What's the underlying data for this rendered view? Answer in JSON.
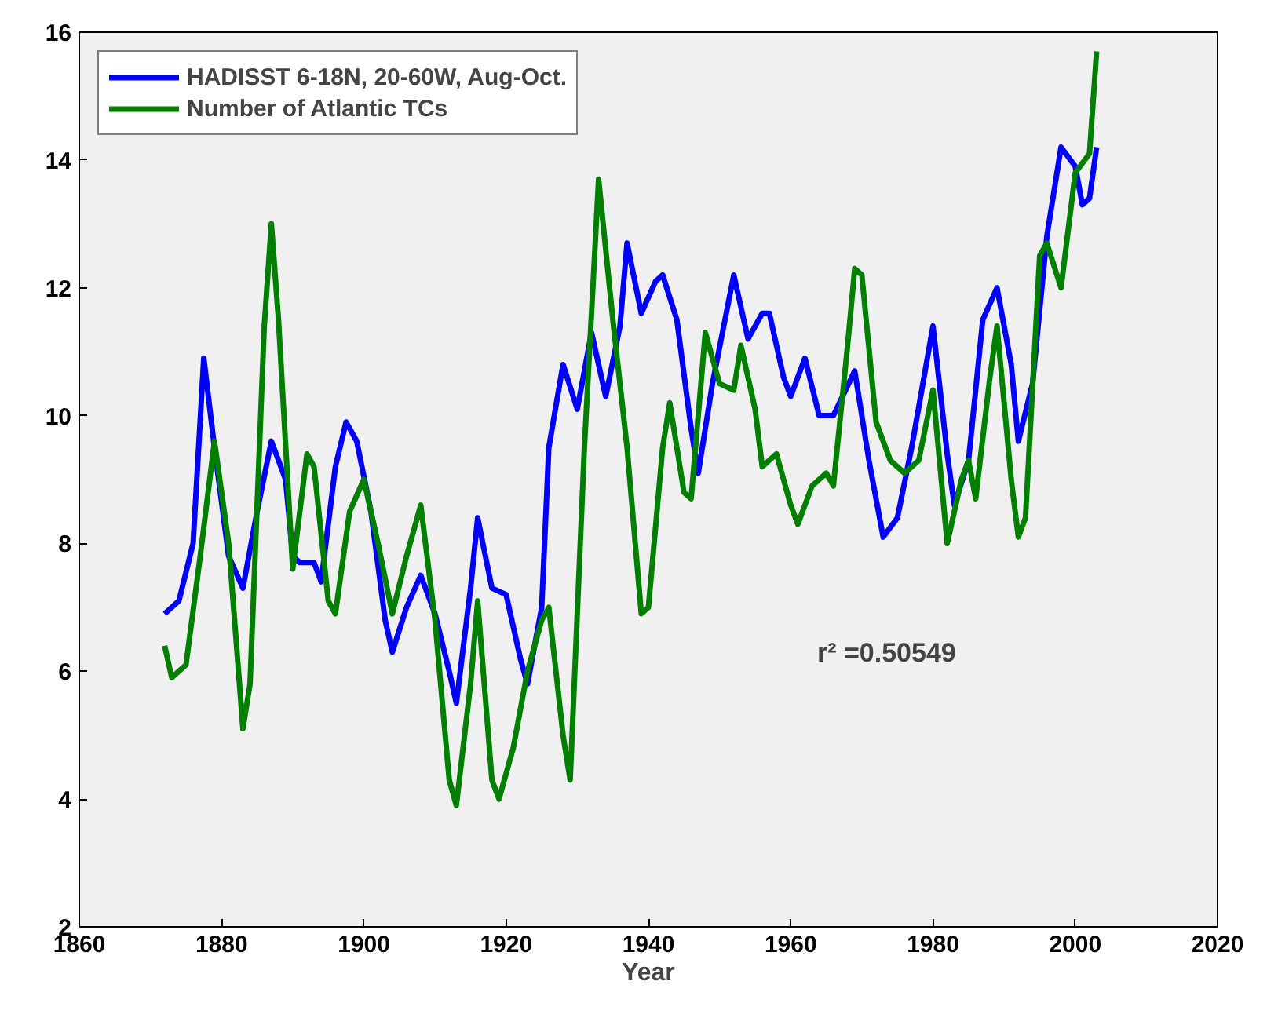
{
  "chart_data": {
    "type": "line",
    "xlabel": "Year",
    "xlim": [
      1860,
      2020
    ],
    "ylim": [
      2,
      16
    ],
    "xticks": [
      1860,
      1880,
      1900,
      1920,
      1940,
      1960,
      1980,
      2000,
      2020
    ],
    "yticks": [
      2,
      4,
      6,
      8,
      10,
      12,
      14,
      16
    ],
    "grid": false,
    "legend": "top left",
    "marker": "none",
    "line_style": "solid",
    "annotations": [
      "r² =0.50549"
    ],
    "series": [
      {
        "name": "HADISST 6-18N, 20-60W, Aug-Oct.",
        "color": "#0000ff",
        "x": [
          1872,
          1874,
          1876,
          1877.5,
          1879,
          1881,
          1883,
          1885,
          1887,
          1889,
          1890,
          1891,
          1893,
          1894,
          1896,
          1897.5,
          1899,
          1901,
          1903,
          1904,
          1906,
          1908,
          1910,
          1912,
          1913,
          1915,
          1916,
          1918,
          1920,
          1922,
          1923,
          1925,
          1926,
          1928,
          1930,
          1932,
          1934,
          1936,
          1937,
          1939,
          1941,
          1942,
          1944,
          1946,
          1947,
          1949,
          1952,
          1954,
          1956,
          1957,
          1959,
          1960,
          1962,
          1964,
          1966,
          1969,
          1971,
          1973,
          1975,
          1977,
          1980,
          1982,
          1983,
          1985,
          1987,
          1989,
          1991,
          1992,
          1994,
          1996,
          1998,
          2000,
          2001,
          2002,
          2003
        ],
        "values": [
          6.9,
          7.1,
          8,
          10.9,
          9.5,
          7.8,
          7.3,
          8.5,
          9.6,
          9,
          7.8,
          7.7,
          7.7,
          7.4,
          9.2,
          9.9,
          9.6,
          8.5,
          6.8,
          6.3,
          7,
          7.5,
          6.9,
          6,
          5.5,
          7.3,
          8.4,
          7.3,
          7.2,
          6.2,
          5.8,
          7,
          9.5,
          10.8,
          10.1,
          11.3,
          10.3,
          11.4,
          12.7,
          11.6,
          12.1,
          12.2,
          11.5,
          9.8,
          9.1,
          10.5,
          12.2,
          11.2,
          11.6,
          11.6,
          10.6,
          10.3,
          10.9,
          10,
          10,
          10.7,
          9.3,
          8.1,
          8.4,
          9.5,
          11.4,
          9.4,
          8.6,
          9.3,
          11.5,
          12,
          10.8,
          9.6,
          10.5,
          12.8,
          14.2,
          13.9,
          13.3,
          13.4,
          14.2
        ]
      },
      {
        "name": "Number of Atlantic TCs",
        "color": "#007f00",
        "x": [
          1872,
          1873,
          1875,
          1877,
          1879,
          1881,
          1883,
          1884,
          1886,
          1887,
          1888,
          1890,
          1892,
          1893,
          1895,
          1896,
          1898,
          1900,
          1902,
          1904,
          1906,
          1908,
          1910,
          1912,
          1913,
          1915,
          1916,
          1918,
          1919,
          1921,
          1923,
          1925,
          1926,
          1928,
          1929,
          1931,
          1933,
          1935,
          1937,
          1939,
          1940,
          1942,
          1943,
          1945,
          1946,
          1948,
          1950,
          1952,
          1953,
          1955,
          1956,
          1958,
          1960,
          1961,
          1963,
          1965,
          1966,
          1968,
          1969,
          1970,
          1972,
          1974,
          1976,
          1978,
          1980,
          1982,
          1984,
          1985,
          1986,
          1988,
          1989,
          1991,
          1992,
          1993,
          1995,
          1996,
          1998,
          2000,
          2002,
          2003
        ],
        "values": [
          6.4,
          5.9,
          6.1,
          7.8,
          9.6,
          8,
          5.1,
          5.8,
          11.4,
          13,
          11.5,
          7.6,
          9.4,
          9.2,
          7.1,
          6.9,
          8.5,
          9,
          8,
          6.9,
          7.8,
          8.6,
          6.8,
          4.3,
          3.9,
          5.8,
          7.1,
          4.3,
          4,
          4.8,
          6,
          6.8,
          7,
          5,
          4.3,
          9.5,
          13.7,
          11.5,
          9.5,
          6.9,
          7,
          9.5,
          10.2,
          8.8,
          8.7,
          11.3,
          10.5,
          10.4,
          11.1,
          10.1,
          9.2,
          9.4,
          8.6,
          8.3,
          8.9,
          9.1,
          8.9,
          11.1,
          12.3,
          12.2,
          9.9,
          9.3,
          9.1,
          9.3,
          10.4,
          8,
          9,
          9.3,
          8.7,
          10.6,
          11.4,
          9,
          8.1,
          8.4,
          12.5,
          12.7,
          12,
          13.8,
          14.1,
          15.7
        ]
      }
    ]
  }
}
